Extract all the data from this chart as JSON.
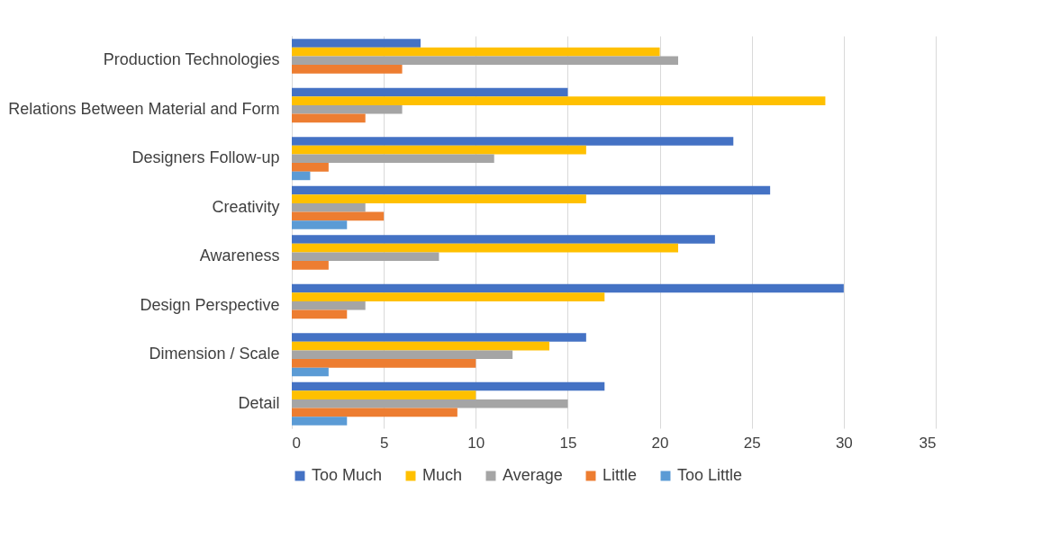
{
  "chart_data": {
    "type": "bar",
    "orientation": "horizontal",
    "categories": [
      "Production Technologies",
      "Relations Between Material and Form",
      "Designers Follow-up",
      "Creativity",
      "Awareness",
      "Design Perspective",
      "Dimension / Scale",
      "Detail"
    ],
    "series": [
      {
        "name": "Too Much",
        "color": "#4472c4",
        "values": [
          7,
          15,
          24,
          26,
          23,
          30,
          16,
          17
        ]
      },
      {
        "name": "Much",
        "color": "#ffc000",
        "values": [
          20,
          29,
          16,
          16,
          21,
          17,
          14,
          10
        ]
      },
      {
        "name": "Average",
        "color": "#a5a5a5",
        "values": [
          21,
          6,
          11,
          4,
          8,
          4,
          12,
          15
        ]
      },
      {
        "name": "Little",
        "color": "#ed7d31",
        "values": [
          6,
          4,
          2,
          5,
          2,
          3,
          10,
          9
        ]
      },
      {
        "name": "Too Little",
        "color": "#5b9bd5",
        "values": [
          0,
          0,
          1,
          3,
          0,
          0,
          2,
          3
        ]
      }
    ],
    "xlim": [
      0,
      35
    ],
    "xticks": [
      0,
      5,
      10,
      15,
      20,
      25,
      30,
      35
    ],
    "grid": "x",
    "legend": "bottom"
  }
}
